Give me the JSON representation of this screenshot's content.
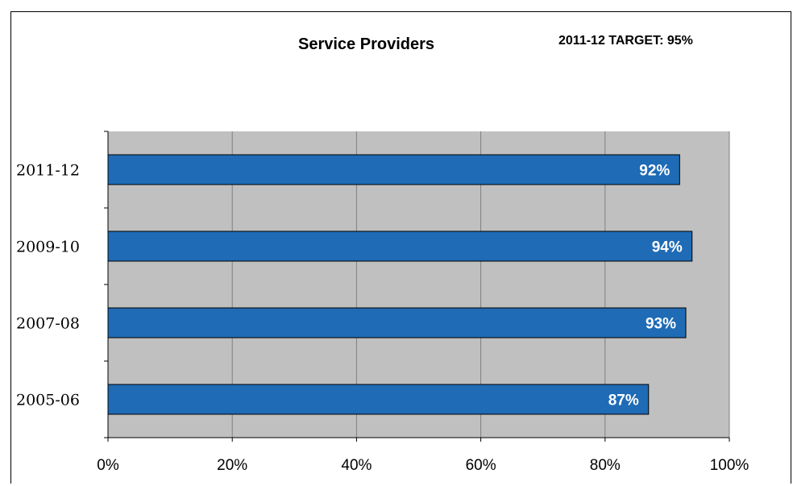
{
  "chart_data": {
    "type": "bar",
    "orientation": "horizontal",
    "title": "Service Providers",
    "annotation": "2011-12 TARGET: 95%",
    "categories": [
      "2011-12",
      "2009-10",
      "2007-08",
      "2005-06"
    ],
    "values": [
      92,
      94,
      93,
      87
    ],
    "data_labels": [
      "92%",
      "94%",
      "93%",
      "87%"
    ],
    "xlim": [
      0,
      100
    ],
    "x_ticks": [
      "0%",
      "20%",
      "40%",
      "60%",
      "80%",
      "100%"
    ],
    "grid": true,
    "colors": {
      "bar_fill": "#1F6BB5",
      "plot_background": "#C0C0C0",
      "gridline": "#808080"
    }
  }
}
